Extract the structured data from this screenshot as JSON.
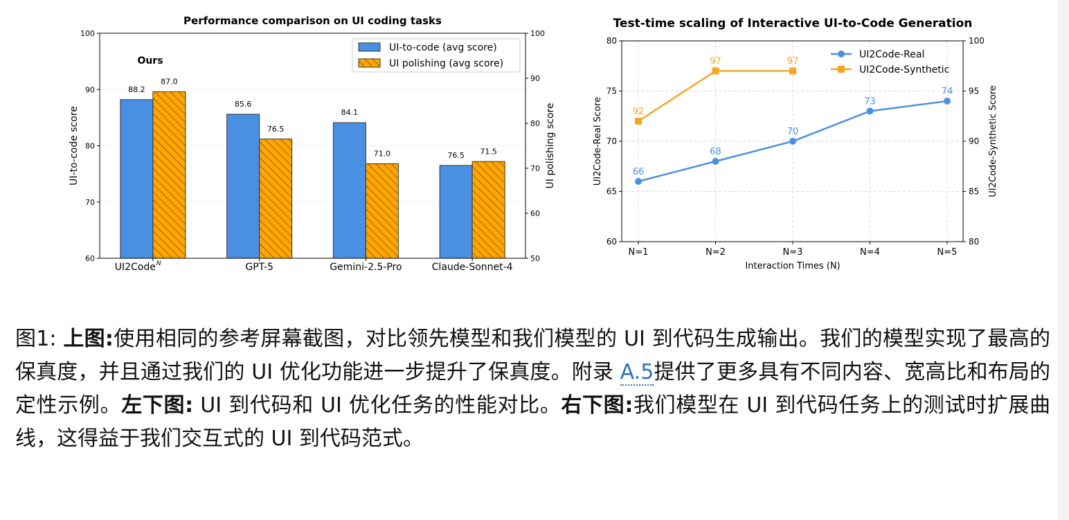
{
  "chart_data": [
    {
      "type": "bar",
      "title": "Performance comparison on UI coding tasks",
      "xlabel": "",
      "ylabel": "UI-to-code score",
      "y2label": "UI polishing score",
      "ylim": [
        60,
        100
      ],
      "y2lim": [
        50,
        100
      ],
      "yticks": [
        60,
        70,
        80,
        90,
        100
      ],
      "y2ticks": [
        50,
        60,
        70,
        80,
        90,
        100
      ],
      "categories": [
        "UI2Code",
        "GPT-5",
        "Gemini-2.5-Pro",
        "Claude-Sonnet-4"
      ],
      "category_superscript": [
        "N",
        "",
        "",
        ""
      ],
      "annotation": "Ours",
      "legend_position": "top-right",
      "grid": true,
      "series": [
        {
          "name": "UI-to-code (avg score)",
          "axis": "left",
          "color": "#4a90e2",
          "hatch": false,
          "values": [
            88.2,
            85.6,
            84.1,
            76.5
          ]
        },
        {
          "name": "UI polishing (avg score)",
          "axis": "right",
          "color": "#ffa500",
          "hatch": true,
          "values": [
            87.0,
            76.5,
            71.0,
            71.5
          ]
        }
      ]
    },
    {
      "type": "line",
      "title": "Test-time scaling of Interactive UI-to-Code Generation",
      "xlabel": "Interaction Times (N)",
      "ylabel": "UI2Code-Real Score",
      "y2label": "UI2Code-Synthetic Score",
      "x": [
        "N=1",
        "N=2",
        "N=3",
        "N=4",
        "N=5"
      ],
      "ylim": [
        60,
        80
      ],
      "y2lim": [
        80,
        100
      ],
      "yticks": [
        60,
        65,
        70,
        75,
        80
      ],
      "y2ticks": [
        80,
        85,
        90,
        95,
        100
      ],
      "legend_position": "top-right",
      "grid": true,
      "series": [
        {
          "name": "UI2Code-Real",
          "axis": "left",
          "color": "#4a90e2",
          "marker": "circle",
          "values": [
            66,
            68,
            70,
            73,
            74
          ]
        },
        {
          "name": "UI2Code-Synthetic",
          "axis": "right",
          "color": "#f5a623",
          "marker": "square",
          "values": [
            92,
            97,
            97,
            null,
            null
          ]
        }
      ]
    }
  ],
  "caption": {
    "figure_label": "图1:",
    "segments": [
      {
        "bold": true,
        "text": "上图:"
      },
      {
        "bold": false,
        "text": "使用相同的参考屏幕截图，对比领先模型和我们模型的 UI 到代码生成输出。我们的模型实现了最高的保真度，并且通过我们的 UI 优化功能进一步提升了保真度。附录 "
      },
      {
        "link": true,
        "text": "A.5"
      },
      {
        "bold": false,
        "text": "提供了更多具有不同内容、宽高比和布局的定性示例。"
      },
      {
        "bold": true,
        "text": "左下图:"
      },
      {
        "bold": false,
        "text": " UI 到代码和 UI 优化任务的性能对比。"
      },
      {
        "bold": true,
        "text": "右下图:"
      },
      {
        "bold": false,
        "text": "我们模型在 UI 到代码任务上的测试时扩展曲线，这得益于我们交互式的 UI 到代码范式。"
      }
    ]
  }
}
